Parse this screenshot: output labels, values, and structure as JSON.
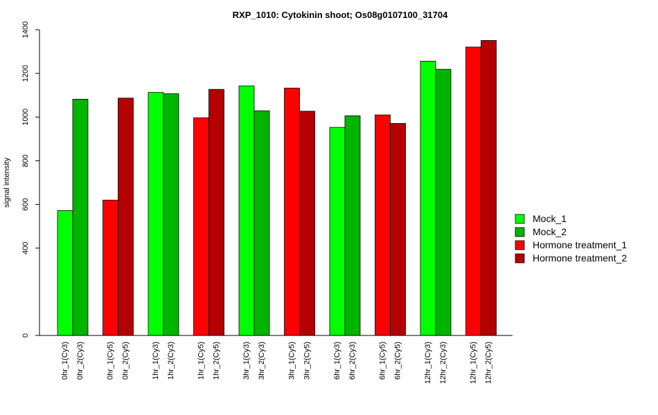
{
  "chart_data": {
    "type": "bar",
    "title": "RXP_1010: Cytokinin shoot; Os08g0107100_31704",
    "ylabel": "signal intensity",
    "xlabel": "",
    "ylim": [
      0,
      1400
    ],
    "yticks": [
      0,
      400,
      600,
      800,
      1000,
      1200,
      1400
    ],
    "legend_position": "right",
    "bars": [
      {
        "label": "0hr_1(Cy3)",
        "value": 572,
        "series": "Mock_1"
      },
      {
        "label": "0hr_2(Cy3)",
        "value": 1082,
        "series": "Mock_2"
      },
      {
        "label": "0hr_1(Cy5)",
        "value": 620,
        "series": "Hormone treatment_1"
      },
      {
        "label": "0hr_2(Cy5)",
        "value": 1087,
        "series": "Hormone treatment_2"
      },
      {
        "label": "1hr_1(Cy3)",
        "value": 1113,
        "series": "Mock_1"
      },
      {
        "label": "1hr_2(Cy3)",
        "value": 1107,
        "series": "Mock_2"
      },
      {
        "label": "1hr_1(Cy5)",
        "value": 997,
        "series": "Hormone treatment_1"
      },
      {
        "label": "1hr_2(Cy5)",
        "value": 1127,
        "series": "Hormone treatment_2"
      },
      {
        "label": "3hr_1(Cy3)",
        "value": 1143,
        "series": "Mock_1"
      },
      {
        "label": "3hr_2(Cy3)",
        "value": 1029,
        "series": "Mock_2"
      },
      {
        "label": "3hr_1(Cy5)",
        "value": 1133,
        "series": "Hormone treatment_1"
      },
      {
        "label": "3hr_2(Cy5)",
        "value": 1027,
        "series": "Hormone treatment_2"
      },
      {
        "label": "6hr_1(Cy3)",
        "value": 953,
        "series": "Mock_1"
      },
      {
        "label": "6hr_2(Cy3)",
        "value": 1006,
        "series": "Mock_2"
      },
      {
        "label": "6hr_1(Cy5)",
        "value": 1010,
        "series": "Hormone treatment_1"
      },
      {
        "label": "6hr_2(Cy5)",
        "value": 971,
        "series": "Hormone treatment_2"
      },
      {
        "label": "12hr_1(Cy3)",
        "value": 1256,
        "series": "Mock_1"
      },
      {
        "label": "12hr_2(Cy3)",
        "value": 1219,
        "series": "Mock_2"
      },
      {
        "label": "12hr_1(Cy5)",
        "value": 1321,
        "series": "Hormone treatment_1"
      },
      {
        "label": "12hr_2(Cy5)",
        "value": 1351,
        "series": "Hormone treatment_2"
      }
    ],
    "legend": [
      {
        "name": "Mock_1",
        "color": "#00FF00"
      },
      {
        "name": "Mock_2",
        "color": "#00B400"
      },
      {
        "name": "Hormone treatment_1",
        "color": "#FF0000"
      },
      {
        "name": "Hormone treatment_2",
        "color": "#B40000"
      }
    ]
  }
}
